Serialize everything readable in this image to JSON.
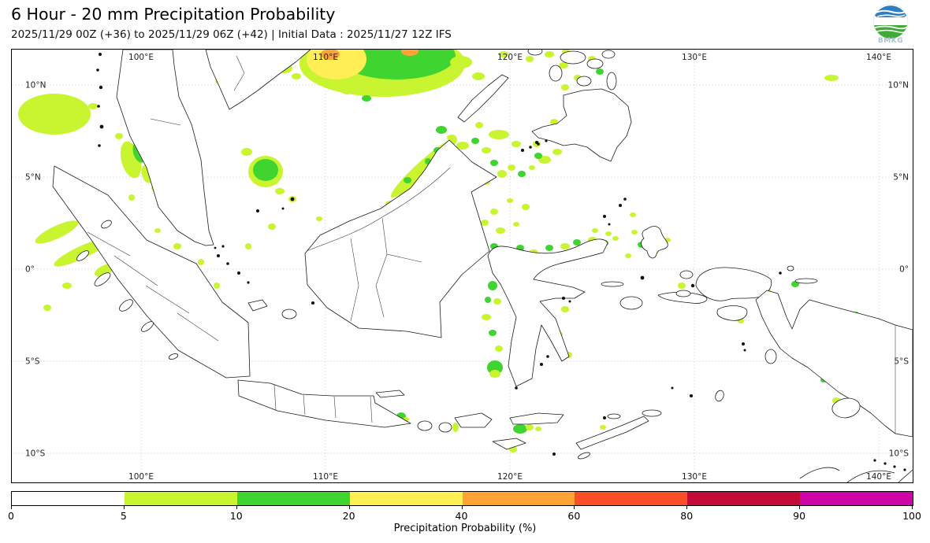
{
  "header": {
    "title": "6 Hour - 20 mm Precipitation Probability",
    "subtitle": "2025/11/29 00Z (+36) to 2025/11/29 06Z (+42) | Initial Data : 2025/11/27 12Z IFS",
    "logo_text": "BMKG"
  },
  "map": {
    "lon": [
      {
        "value": 100,
        "label": "100°E"
      },
      {
        "value": 110,
        "label": "110°E"
      },
      {
        "value": 120,
        "label": "120°E"
      },
      {
        "value": 130,
        "label": "130°E"
      },
      {
        "value": 140,
        "label": "140°E"
      }
    ],
    "lat": [
      {
        "value": 10,
        "label": "10°N"
      },
      {
        "value": 5,
        "label": "5°N"
      },
      {
        "value": 0,
        "label": "0°"
      },
      {
        "value": -5,
        "label": "5°S"
      },
      {
        "value": -10,
        "label": "10°S"
      }
    ],
    "patches": [
      [
        470,
        18,
        105,
        42,
        1,
        0
      ],
      [
        488,
        8,
        75,
        30,
        2,
        0
      ],
      [
        412,
        12,
        38,
        26,
        3,
        0
      ],
      [
        404,
        6,
        12,
        7,
        4,
        0
      ],
      [
        505,
        2,
        11,
        6,
        4,
        0
      ],
      [
        570,
        16,
        14,
        8,
        1,
        0
      ],
      [
        592,
        34,
        8,
        5,
        1,
        0
      ],
      [
        346,
        24,
        10,
        6,
        1,
        0
      ],
      [
        312,
        6,
        16,
        7,
        1,
        0
      ],
      [
        333,
        10,
        7,
        5,
        2,
        0
      ],
      [
        361,
        34,
        6,
        4,
        1,
        0
      ],
      [
        426,
        52,
        8,
        5,
        1,
        0
      ],
      [
        450,
        62,
        6,
        4,
        2,
        0
      ],
      [
        263,
        40,
        5,
        4,
        1,
        0
      ],
      [
        287,
        58,
        5,
        4,
        1,
        0
      ],
      [
        318,
        28,
        6,
        4,
        1,
        0
      ],
      [
        54,
        82,
        46,
        26,
        1,
        0
      ],
      [
        103,
        72,
        6,
        4,
        1,
        0
      ],
      [
        151,
        140,
        12,
        24,
        1,
        -15
      ],
      [
        162,
        130,
        8,
        14,
        2,
        -15
      ],
      [
        172,
        158,
        7,
        12,
        1,
        -15
      ],
      [
        182,
        176,
        5,
        4,
        1,
        0
      ],
      [
        152,
        188,
        4,
        4,
        1,
        0
      ],
      [
        136,
        110,
        5,
        4,
        1,
        0
      ],
      [
        57,
        232,
        30,
        8,
        1,
        -25
      ],
      [
        88,
        258,
        38,
        8,
        1,
        -25
      ],
      [
        118,
        280,
        14,
        6,
        1,
        -25
      ],
      [
        70,
        300,
        6,
        4,
        1,
        0
      ],
      [
        45,
        328,
        5,
        4,
        1,
        0
      ],
      [
        322,
        155,
        22,
        20,
        1,
        0
      ],
      [
        322,
        153,
        16,
        14,
        2,
        0
      ],
      [
        298,
        130,
        7,
        5,
        1,
        0
      ],
      [
        340,
        180,
        6,
        4,
        1,
        0
      ],
      [
        210,
        250,
        5,
        4,
        1,
        0
      ],
      [
        240,
        270,
        4,
        4,
        1,
        0
      ],
      [
        185,
        230,
        4,
        3,
        1,
        0
      ],
      [
        260,
        300,
        4,
        4,
        1,
        0
      ],
      [
        300,
        250,
        4,
        4,
        1,
        0
      ],
      [
        330,
        225,
        5,
        4,
        1,
        0
      ],
      [
        356,
        190,
        5,
        4,
        1,
        0
      ],
      [
        390,
        215,
        4,
        3,
        1,
        0
      ],
      [
        456,
        459,
        4,
        3,
        1,
        0
      ],
      [
        494,
        466,
        6,
        5,
        2,
        0
      ],
      [
        500,
        470,
        4,
        3,
        1,
        0
      ],
      [
        583,
        470,
        5,
        4,
        2,
        0
      ],
      [
        563,
        480,
        4,
        6,
        1,
        0
      ],
      [
        645,
        482,
        9,
        6,
        2,
        0
      ],
      [
        657,
        480,
        5,
        4,
        1,
        0
      ],
      [
        668,
        482,
        4,
        3,
        1,
        0
      ],
      [
        636,
        508,
        5,
        4,
        1,
        0
      ],
      [
        750,
        480,
        4,
        3,
        1,
        0
      ],
      [
        523,
        150,
        56,
        9,
        1,
        -42
      ],
      [
        502,
        166,
        5,
        4,
        2,
        0
      ],
      [
        528,
        142,
        4,
        4,
        2,
        0
      ],
      [
        540,
        128,
        5,
        4,
        2,
        0
      ],
      [
        480,
        196,
        6,
        4,
        1,
        0
      ],
      [
        466,
        210,
        5,
        4,
        1,
        0
      ],
      [
        545,
        102,
        7,
        5,
        2,
        0
      ],
      [
        558,
        112,
        6,
        4,
        1,
        0
      ],
      [
        572,
        122,
        8,
        5,
        1,
        0
      ],
      [
        588,
        116,
        5,
        4,
        2,
        0
      ],
      [
        602,
        128,
        6,
        4,
        1,
        0
      ],
      [
        562,
        138,
        5,
        4,
        1,
        0
      ],
      [
        582,
        148,
        6,
        5,
        1,
        0
      ],
      [
        612,
        144,
        5,
        4,
        2,
        0
      ],
      [
        622,
        158,
        6,
        5,
        1,
        0
      ],
      [
        634,
        150,
        5,
        4,
        1,
        0
      ],
      [
        647,
        158,
        5,
        4,
        2,
        0
      ],
      [
        660,
        150,
        4,
        3,
        1,
        0
      ],
      [
        602,
        168,
        5,
        4,
        1,
        0
      ],
      [
        571,
        164,
        4,
        3,
        2,
        0
      ],
      [
        593,
        96,
        5,
        4,
        1,
        0
      ],
      [
        618,
        108,
        13,
        6,
        1,
        0
      ],
      [
        640,
        120,
        6,
        4,
        1,
        0
      ],
      [
        562,
        200,
        6,
        4,
        1,
        0
      ],
      [
        582,
        214,
        5,
        4,
        1,
        0
      ],
      [
        612,
        206,
        5,
        4,
        1,
        0
      ],
      [
        632,
        192,
        4,
        3,
        1,
        0
      ],
      [
        652,
        200,
        5,
        4,
        1,
        0
      ],
      [
        600,
        220,
        5,
        4,
        1,
        0
      ],
      [
        620,
        230,
        6,
        4,
        1,
        0
      ],
      [
        640,
        222,
        4,
        3,
        1,
        0
      ],
      [
        482,
        232,
        5,
        4,
        1,
        0
      ],
      [
        500,
        262,
        4,
        3,
        1,
        0
      ],
      [
        462,
        282,
        4,
        3,
        1,
        0
      ],
      [
        432,
        300,
        5,
        4,
        1,
        0
      ],
      [
        520,
        300,
        4,
        3,
        1,
        0
      ],
      [
        545,
        250,
        4,
        3,
        1,
        0
      ],
      [
        495,
        320,
        4,
        3,
        1,
        0
      ],
      [
        612,
        250,
        5,
        4,
        2,
        0
      ],
      [
        628,
        262,
        6,
        4,
        1,
        0
      ],
      [
        645,
        252,
        5,
        4,
        2,
        0
      ],
      [
        662,
        258,
        6,
        4,
        1,
        0
      ],
      [
        682,
        252,
        5,
        4,
        2,
        0
      ],
      [
        702,
        250,
        6,
        4,
        1,
        0
      ],
      [
        717,
        245,
        5,
        4,
        2,
        0
      ],
      [
        737,
        242,
        6,
        4,
        1,
        0
      ],
      [
        752,
        246,
        5,
        4,
        2,
        0
      ],
      [
        766,
        240,
        4,
        3,
        1,
        0
      ],
      [
        618,
        280,
        5,
        4,
        1,
        0
      ],
      [
        610,
        300,
        6,
        6,
        2,
        0
      ],
      [
        616,
        320,
        5,
        4,
        1,
        0
      ],
      [
        604,
        318,
        4,
        4,
        2,
        0
      ],
      [
        602,
        340,
        6,
        4,
        1,
        0
      ],
      [
        610,
        360,
        5,
        4,
        2,
        0
      ],
      [
        618,
        380,
        5,
        4,
        1,
        0
      ],
      [
        613,
        404,
        10,
        9,
        2,
        0
      ],
      [
        613,
        412,
        7,
        5,
        1,
        0
      ],
      [
        642,
        360,
        6,
        4,
        1,
        0
      ],
      [
        656,
        344,
        5,
        4,
        1,
        0
      ],
      [
        662,
        300,
        6,
        4,
        1,
        0
      ],
      [
        682,
        310,
        5,
        4,
        2,
        0
      ],
      [
        702,
        330,
        5,
        4,
        1,
        0
      ],
      [
        648,
        300,
        4,
        3,
        1,
        0
      ],
      [
        694,
        362,
        5,
        4,
        1,
        0
      ],
      [
        706,
        388,
        5,
        4,
        1,
        0
      ],
      [
        740,
        230,
        4,
        3,
        1,
        0
      ],
      [
        757,
        234,
        4,
        3,
        1,
        0
      ],
      [
        800,
        248,
        6,
        4,
        2,
        0
      ],
      [
        816,
        256,
        5,
        4,
        1,
        0
      ],
      [
        790,
        232,
        4,
        3,
        1,
        0
      ],
      [
        782,
        262,
        4,
        3,
        1,
        0
      ],
      [
        832,
        242,
        4,
        3,
        1,
        0
      ],
      [
        850,
        300,
        5,
        4,
        1,
        0
      ],
      [
        870,
        318,
        4,
        3,
        1,
        0
      ],
      [
        788,
        210,
        4,
        3,
        1,
        0
      ],
      [
        922,
        288,
        5,
        4,
        2,
        0
      ],
      [
        940,
        296,
        6,
        5,
        2,
        0
      ],
      [
        958,
        306,
        5,
        4,
        1,
        0
      ],
      [
        994,
        298,
        5,
        4,
        2,
        0
      ],
      [
        1022,
        356,
        5,
        4,
        2,
        0
      ],
      [
        1054,
        374,
        5,
        4,
        2,
        0
      ],
      [
        1071,
        336,
        4,
        3,
        2,
        0
      ],
      [
        1079,
        370,
        5,
        4,
        2,
        0
      ],
      [
        1098,
        380,
        5,
        4,
        2,
        0
      ],
      [
        1108,
        388,
        5,
        4,
        2,
        0
      ],
      [
        1118,
        394,
        5,
        4,
        2,
        0
      ],
      [
        1128,
        398,
        8,
        3,
        1,
        0
      ],
      [
        1140,
        400,
        6,
        3,
        1,
        0
      ],
      [
        975,
        330,
        4,
        3,
        1,
        0
      ],
      [
        1000,
        340,
        4,
        3,
        1,
        0
      ],
      [
        925,
        345,
        4,
        3,
        1,
        0
      ],
      [
        1046,
        446,
        5,
        4,
        1,
        0
      ],
      [
        1030,
        420,
        4,
        3,
        2,
        0
      ],
      [
        700,
        20,
        6,
        4,
        1,
        0
      ],
      [
        718,
        36,
        5,
        4,
        1,
        0
      ],
      [
        736,
        12,
        5,
        4,
        1,
        0
      ],
      [
        746,
        28,
        5,
        4,
        2,
        0
      ],
      [
        702,
        48,
        5,
        4,
        1,
        0
      ],
      [
        688,
        92,
        5,
        4,
        1,
        0
      ],
      [
        732,
        100,
        5,
        4,
        1,
        0
      ],
      [
        757,
        120,
        4,
        3,
        1,
        0
      ],
      [
        771,
        90,
        4,
        3,
        1,
        0
      ],
      [
        692,
        130,
        6,
        4,
        1,
        0
      ],
      [
        666,
        120,
        5,
        4,
        1,
        0
      ],
      [
        676,
        140,
        8,
        5,
        1,
        0
      ],
      [
        668,
        135,
        5,
        4,
        2,
        0
      ],
      [
        624,
        6,
        6,
        4,
        1,
        0
      ],
      [
        657,
        12,
        5,
        4,
        1,
        0
      ],
      [
        682,
        6,
        6,
        4,
        1,
        0
      ],
      [
        703,
        2,
        5,
        4,
        1,
        0
      ],
      [
        1040,
        36,
        9,
        4,
        1,
        0
      ]
    ]
  },
  "colorbar": {
    "title": "Precipitation Probability (%)",
    "ticks": [
      "0",
      "5",
      "10",
      "20",
      "40",
      "60",
      "80",
      "90",
      "100"
    ],
    "colors": [
      "#ffffff",
      "#c8f52f",
      "#3fd430",
      "#ffef55",
      "#ffa234",
      "#fc4d29",
      "#c40a36",
      "#ce06a8"
    ]
  },
  "chart_data": {
    "type": "heatmap",
    "title": "6 Hour - 20 mm Precipitation Probability",
    "subtitle": "2025/11/29 00Z (+36) to 2025/11/29 06Z (+42) | Initial Data : 2025/11/27 12Z IFS",
    "xlabel_ticks": [
      "100°E",
      "110°E",
      "120°E",
      "130°E",
      "140°E"
    ],
    "ylabel_ticks": [
      "10°N",
      "5°N",
      "0°",
      "5°S",
      "10°S"
    ],
    "colorbar_label": "Precipitation Probability (%)",
    "colorbar_bounds": [
      0,
      5,
      10,
      20,
      40,
      60,
      80,
      90,
      100
    ],
    "colorbar_colors": [
      "#ffffff",
      "#c8f52f",
      "#3fd430",
      "#ffef55",
      "#ffa234",
      "#fc4d29",
      "#c40a36",
      "#ce06a8"
    ],
    "legend_position": "bottom",
    "grid": true
  }
}
